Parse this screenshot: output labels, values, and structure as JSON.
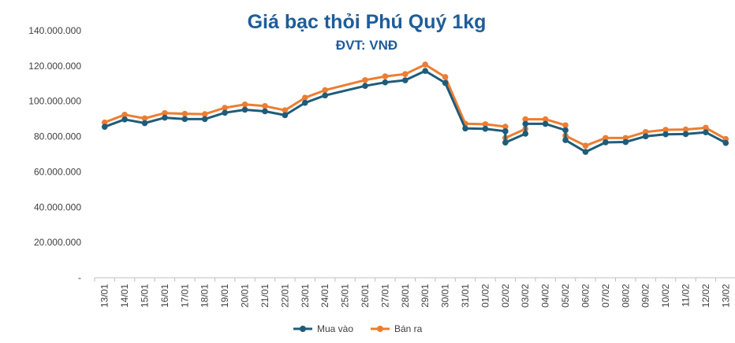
{
  "chart_data": {
    "type": "line",
    "title": "Giá bạc thỏi Phú Quý 1kg",
    "subtitle": "ĐVT: VNĐ",
    "xlabel": "",
    "ylabel": "",
    "ylim": [
      0,
      140000000
    ],
    "yticks": [
      0,
      20000000,
      40000000,
      60000000,
      80000000,
      100000000,
      120000000,
      140000000
    ],
    "ytick_labels": [
      "-",
      "20.000.000",
      "40.000.000",
      "60.000.000",
      "80.000.000",
      "100.000.000",
      "120.000.000",
      "140.000.000"
    ],
    "grid": false,
    "legend": "bottom",
    "categories": [
      "13/01",
      "14/01",
      "15/01",
      "16/01",
      "17/01",
      "18/01",
      "19/01",
      "20/01",
      "21/01",
      "22/01",
      "23/01",
      "24/01",
      "25/01",
      "26/01",
      "27/01",
      "28/01",
      "29/01",
      "30/01",
      "31/01",
      "01/02",
      "02/02",
      "03/02",
      "04/02",
      "05/02",
      "06/02",
      "07/02",
      "08/02",
      "09/02",
      "10/02",
      "11/02",
      "12/02",
      "13/02"
    ],
    "series": [
      {
        "name": "Mua vào",
        "color": "#1f5c7a",
        "points": [
          {
            "i": 0,
            "v": 85500000
          },
          {
            "i": 1,
            "v": 89700000
          },
          {
            "i": 2,
            "v": 87600000
          },
          {
            "i": 3,
            "v": 90700000
          },
          {
            "i": 4,
            "v": 89900000
          },
          {
            "i": 5,
            "v": 89900000
          },
          {
            "i": 6,
            "v": 93500000
          },
          {
            "i": 7,
            "v": 95200000
          },
          {
            "i": 8,
            "v": 94300000
          },
          {
            "i": 9,
            "v": 92100000
          },
          {
            "i": 10,
            "v": 99100000
          },
          {
            "i": 11,
            "v": 103300000
          },
          {
            "i": 13,
            "v": 108700000
          },
          {
            "i": 14,
            "v": 110700000
          },
          {
            "i": 15,
            "v": 111900000
          },
          {
            "i": 16,
            "v": 117200000
          },
          {
            "i": 17,
            "v": 110400000
          },
          {
            "i": 18,
            "v": 84600000
          },
          {
            "i": 19,
            "v": 84400000
          },
          {
            "i": 20,
            "v": 83000000
          },
          {
            "i": 20,
            "v": 76600000
          },
          {
            "i": 21,
            "v": 81600000
          },
          {
            "i": 21,
            "v": 87200000
          },
          {
            "i": 22,
            "v": 87200000
          },
          {
            "i": 23,
            "v": 83600000
          },
          {
            "i": 23,
            "v": 78000000
          },
          {
            "i": 24,
            "v": 71300000
          },
          {
            "i": 25,
            "v": 76700000
          },
          {
            "i": 26,
            "v": 76900000
          },
          {
            "i": 27,
            "v": 80100000
          },
          {
            "i": 28,
            "v": 81300000
          },
          {
            "i": 29,
            "v": 81400000
          },
          {
            "i": 30,
            "v": 82400000
          },
          {
            "i": 31,
            "v": 76400000
          }
        ]
      },
      {
        "name": "Bán ra",
        "color": "#ed7d31",
        "points": [
          {
            "i": 0,
            "v": 88000000
          },
          {
            "i": 1,
            "v": 92400000
          },
          {
            "i": 2,
            "v": 90300000
          },
          {
            "i": 3,
            "v": 93300000
          },
          {
            "i": 4,
            "v": 92900000
          },
          {
            "i": 5,
            "v": 92700000
          },
          {
            "i": 6,
            "v": 96300000
          },
          {
            "i": 7,
            "v": 98200000
          },
          {
            "i": 8,
            "v": 97300000
          },
          {
            "i": 9,
            "v": 94900000
          },
          {
            "i": 10,
            "v": 102000000
          },
          {
            "i": 11,
            "v": 106300000
          },
          {
            "i": 13,
            "v": 112000000
          },
          {
            "i": 14,
            "v": 114100000
          },
          {
            "i": 15,
            "v": 115400000
          },
          {
            "i": 16,
            "v": 120800000
          },
          {
            "i": 17,
            "v": 113700000
          },
          {
            "i": 18,
            "v": 87300000
          },
          {
            "i": 19,
            "v": 87000000
          },
          {
            "i": 20,
            "v": 85600000
          },
          {
            "i": 20,
            "v": 79200000
          },
          {
            "i": 21,
            "v": 84300000
          },
          {
            "i": 21,
            "v": 89800000
          },
          {
            "i": 22,
            "v": 89800000
          },
          {
            "i": 23,
            "v": 86400000
          },
          {
            "i": 23,
            "v": 80500000
          },
          {
            "i": 24,
            "v": 74800000
          },
          {
            "i": 25,
            "v": 79200000
          },
          {
            "i": 26,
            "v": 79200000
          },
          {
            "i": 27,
            "v": 82600000
          },
          {
            "i": 28,
            "v": 83800000
          },
          {
            "i": 29,
            "v": 84000000
          },
          {
            "i": 30,
            "v": 85000000
          },
          {
            "i": 31,
            "v": 78600000
          }
        ]
      }
    ]
  }
}
